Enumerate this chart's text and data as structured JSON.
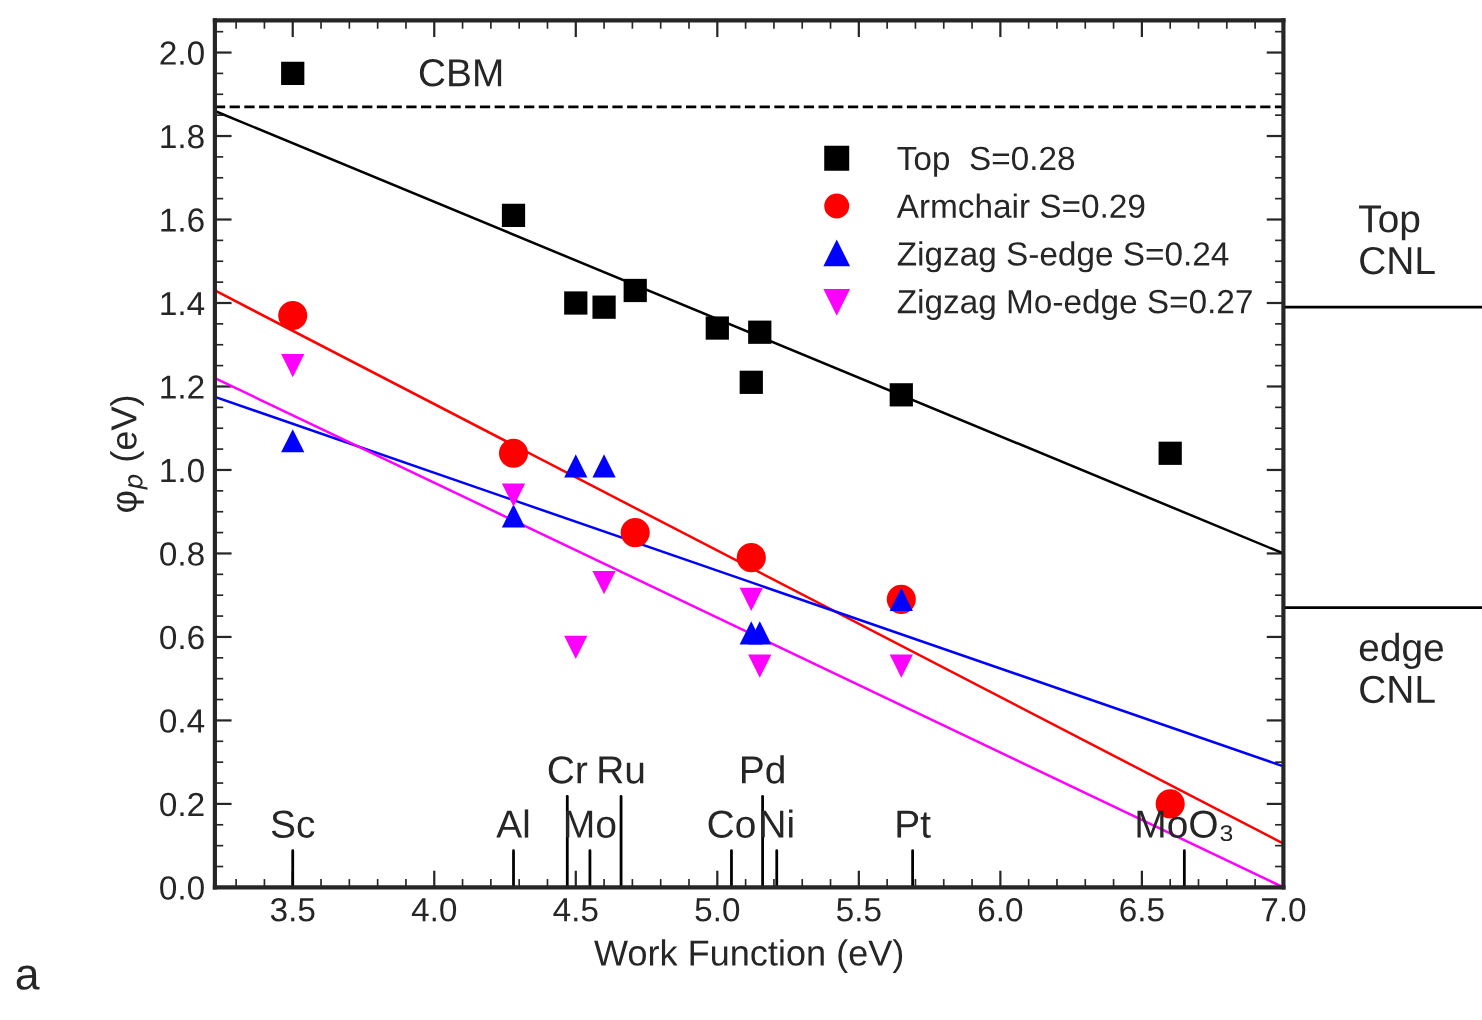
{
  "chart_data": {
    "type": "scatter",
    "xlabel": "Work Function (eV)",
    "ylabel": "φ$_{p}$ (eV)",
    "xlim": [
      3.225,
      7.0
    ],
    "xticks": [
      3.5,
      {
        "value": 4,
        "label": "4.0"
      },
      4.5,
      {
        "value": 5,
        "label": "5.0"
      },
      5.5,
      {
        "value": 6,
        "label": "6.0"
      },
      6.5,
      {
        "value": 7,
        "label": "7.0"
      }
    ],
    "ylim": [
      0,
      2.077
    ],
    "yticks": [
      {
        "value": 0,
        "label": "0.0"
      },
      0.2,
      0.4,
      0.6,
      0.8,
      {
        "value": 1,
        "label": "1.0"
      },
      1.2,
      1.4,
      1.6,
      1.8,
      {
        "value": 2,
        "label": "2.0"
      }
    ],
    "legend": "top right",
    "grid": false,
    "series": [
      {
        "name": "Top  S=0.28",
        "color": "#000000",
        "marker": "square",
        "x": [
          3.5,
          4.28,
          4.5,
          4.6,
          4.71,
          5.0,
          5.12,
          5.15,
          5.65,
          6.6
        ],
        "values": [
          1.95,
          1.61,
          1.4,
          1.39,
          1.43,
          1.34,
          1.21,
          1.33,
          1.18,
          1.04
        ]
      },
      {
        "name": "Armchair S=0.29",
        "color": "#ff0000",
        "marker": "circle",
        "x": [
          3.5,
          4.28,
          4.71,
          5.12,
          5.65,
          6.6
        ],
        "values": [
          1.37,
          1.04,
          0.85,
          0.79,
          0.69,
          0.2
        ]
      },
      {
        "name": "Zigzag S-edge S=0.24",
        "color": "#0000ff",
        "marker": "triangle",
        "x": [
          3.5,
          4.28,
          4.5,
          4.6,
          5.12,
          5.15,
          5.65
        ],
        "values": [
          1.07,
          0.89,
          1.01,
          1.01,
          0.61,
          0.61,
          0.69
        ]
      },
      {
        "name": "Zigzag Mo-edge S=0.27",
        "color": "#ff00ff",
        "marker": "triangle_down",
        "x": [
          3.5,
          4.28,
          4.5,
          4.6,
          5.12,
          5.15,
          5.65
        ],
        "values": [
          1.25,
          0.94,
          0.575,
          0.73,
          0.69,
          0.53,
          0.53
        ]
      },
      {
        "type": "line",
        "color": "#000000",
        "x": [
          3.225,
          7.0
        ],
        "values": [
          1.86,
          0.8
        ]
      },
      {
        "type": "line",
        "color": "#ff0000",
        "x": [
          3.225,
          7.0
        ],
        "values": [
          1.43,
          0.105
        ]
      },
      {
        "type": "line",
        "color": "#0000ff",
        "x": [
          3.225,
          7.0
        ],
        "values": [
          1.175,
          0.29
        ]
      },
      {
        "type": "line",
        "color": "#ff00ff",
        "x": [
          3.225,
          7.0
        ],
        "values": [
          1.22,
          0.0
        ]
      }
    ],
    "ref_lines": [
      {
        "axis": "y",
        "value": 1.87,
        "label": "CBM",
        "line_style": "dashed",
        "color": "#000000"
      },
      {
        "axis": "y",
        "value": 1.39,
        "label": "Top\nCNL",
        "line_style": "solid",
        "color": "#000000"
      },
      {
        "axis": "y",
        "value": 0.67,
        "label": "edge\nCNL",
        "line_style": "solid",
        "color": "#000000"
      },
      {
        "axis": "x",
        "value": 3.5,
        "label": "Sc"
      },
      {
        "axis": "x",
        "value": 4.28,
        "label": "Al"
      },
      {
        "axis": "x",
        "value": 4.47,
        "label": "Cr"
      },
      {
        "axis": "x",
        "value": 4.55,
        "label": "Mo"
      },
      {
        "axis": "x",
        "value": 4.66,
        "label": "Ru"
      },
      {
        "axis": "x",
        "value": 5.05,
        "label": "Co"
      },
      {
        "axis": "x",
        "value": 5.16,
        "label": "Pd"
      },
      {
        "axis": "x",
        "value": 5.21,
        "label": "Ni"
      },
      {
        "axis": "x",
        "value": 5.69,
        "label": "Pt"
      },
      {
        "axis": "x",
        "value": 6.65,
        "label": "MoO₃"
      }
    ],
    "annotations": [
      "a"
    ]
  }
}
